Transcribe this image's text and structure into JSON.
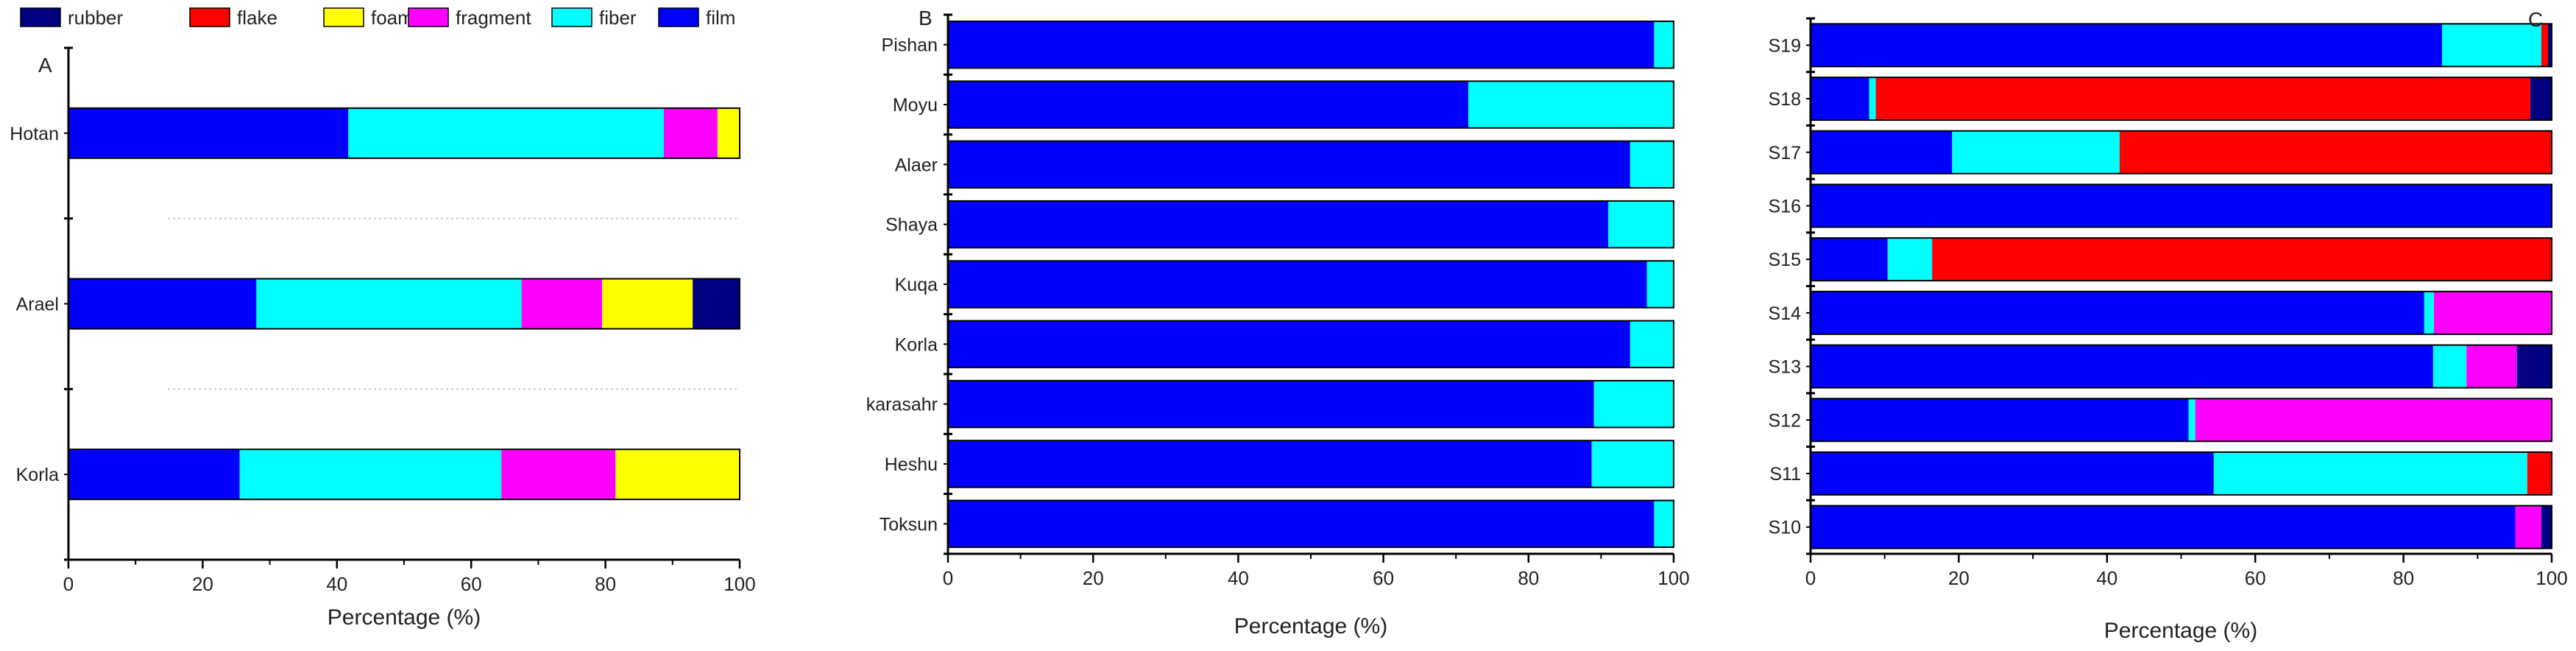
{
  "legend": {
    "placement": "top-left",
    "entries": [
      {
        "name": "rubber",
        "color": "#000080"
      },
      {
        "name": "flake",
        "color": "#ff0000"
      },
      {
        "name": "foam",
        "color": "#ffff00"
      },
      {
        "name": "fragment",
        "color": "#ff00ff"
      },
      {
        "name": "fiber",
        "color": "#00ffff"
      },
      {
        "name": "film",
        "color": "#0000ff"
      }
    ]
  },
  "chart_data": [
    {
      "type": "bar",
      "orientation": "horizontal",
      "stacked": true,
      "panel_label": "A",
      "xlabel": "Percentage (%)",
      "xlim": [
        0,
        100
      ],
      "xticks": [
        0,
        20,
        40,
        60,
        80,
        100
      ],
      "gridlines": "dotted separators between categories",
      "categories": [
        "Hotan",
        "Arael",
        "Korla"
      ],
      "series": [
        {
          "name": "film",
          "color": "#0000ff",
          "values": [
            41.7,
            28.0,
            25.5
          ]
        },
        {
          "name": "fiber",
          "color": "#00ffff",
          "values": [
            47.0,
            39.5,
            39.0
          ]
        },
        {
          "name": "fragment",
          "color": "#ff00ff",
          "values": [
            8.0,
            12.0,
            17.0
          ]
        },
        {
          "name": "foam",
          "color": "#ffff00",
          "values": [
            3.3,
            13.5,
            18.5
          ]
        },
        {
          "name": "flake",
          "color": "#ff0000",
          "values": [
            0,
            0,
            0
          ]
        },
        {
          "name": "rubber",
          "color": "#000080",
          "values": [
            0,
            7.0,
            0
          ]
        }
      ]
    },
    {
      "type": "bar",
      "orientation": "horizontal",
      "stacked": true,
      "panel_label": "B",
      "xlabel": "Percentage (%)",
      "xlim": [
        0,
        100
      ],
      "xticks": [
        0,
        20,
        40,
        60,
        80,
        100
      ],
      "categories": [
        "Pishan",
        "Moyu",
        "Alaer",
        "Shaya",
        "Kuqa",
        "Korla",
        "karasahr",
        "Heshu",
        "Toksun"
      ],
      "series": [
        {
          "name": "film",
          "color": "#0000ff",
          "values": [
            97.3,
            71.7,
            94.0,
            91.0,
            96.3,
            94.0,
            89.0,
            88.7,
            97.3
          ]
        },
        {
          "name": "fiber",
          "color": "#00ffff",
          "values": [
            2.7,
            28.3,
            6.0,
            9.0,
            3.7,
            6.0,
            11.0,
            11.3,
            2.7
          ]
        }
      ]
    },
    {
      "type": "bar",
      "orientation": "horizontal",
      "stacked": true,
      "panel_label": "C",
      "xlabel": "Percentage (%)",
      "xlim": [
        0,
        100
      ],
      "xticks": [
        0,
        20,
        40,
        60,
        80,
        100
      ],
      "categories": [
        "S19",
        "S18",
        "S17",
        "S16",
        "S15",
        "S14",
        "S13",
        "S12",
        "S11",
        "S10"
      ],
      "series": [
        {
          "name": "film",
          "color": "#0000ff",
          "values": [
            85.2,
            7.9,
            19.1,
            100,
            10.4,
            82.8,
            84.0,
            51.0,
            54.4,
            95.1
          ]
        },
        {
          "name": "fiber",
          "color": "#00ffff",
          "values": [
            13.4,
            0.9,
            22.6,
            0,
            6.0,
            1.3,
            4.5,
            0.9,
            42.3,
            0
          ]
        },
        {
          "name": "fragment",
          "color": "#ff00ff",
          "values": [
            0,
            0,
            0,
            0,
            0,
            15.9,
            6.8,
            48.1,
            0,
            3.5
          ]
        },
        {
          "name": "flake",
          "color": "#ff0000",
          "values": [
            0.9,
            88.3,
            58.3,
            0,
            83.6,
            0,
            0,
            0,
            3.3,
            0
          ]
        },
        {
          "name": "rubber",
          "color": "#000080",
          "values": [
            0.5,
            2.9,
            0,
            0,
            0,
            0,
            4.7,
            0,
            0,
            1.4
          ]
        }
      ]
    }
  ]
}
